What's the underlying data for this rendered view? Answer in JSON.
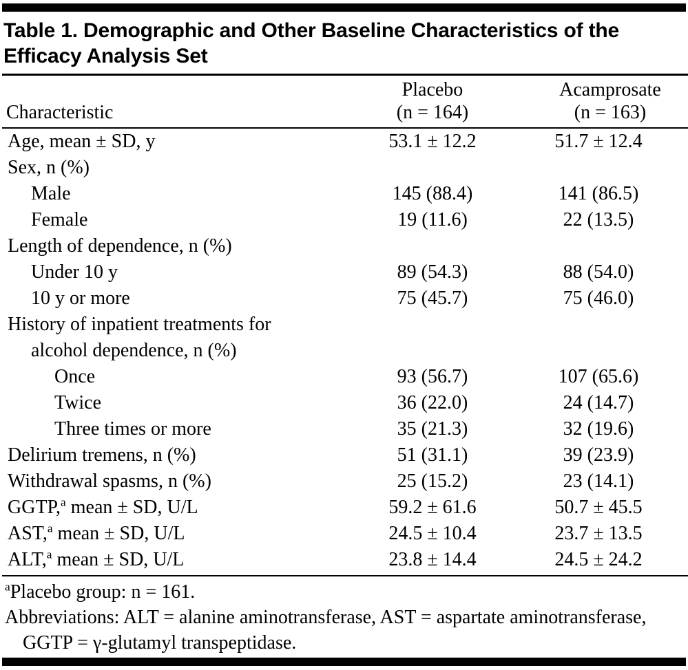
{
  "table": {
    "title": "Table 1. Demographic and Other Baseline Characteristics of the Efficacy Analysis Set",
    "columns": {
      "characteristic": "Characteristic",
      "placebo_line1": "Placebo",
      "placebo_line2": "(n = 164)",
      "acamprosate_line1": "Acamprosate",
      "acamprosate_line2": "(n = 163)"
    },
    "rows": [
      {
        "label": "Age, mean ± SD, y",
        "indent": 0,
        "placebo": "53.1 ± 12.2",
        "acamprosate": "51.7 ± 12.4"
      },
      {
        "label": "Sex, n (%)",
        "indent": 0,
        "placebo": "",
        "acamprosate": ""
      },
      {
        "label": "Male",
        "indent": 1,
        "placebo": "145 (88.4)",
        "acamprosate": "141 (86.5)"
      },
      {
        "label": "Female",
        "indent": 1,
        "placebo": "19 (11.6)",
        "acamprosate": "22 (13.5)"
      },
      {
        "label": "Length of dependence, n (%)",
        "indent": 0,
        "placebo": "",
        "acamprosate": ""
      },
      {
        "label": "Under 10 y",
        "indent": 1,
        "placebo": "89 (54.3)",
        "acamprosate": "88 (54.0)"
      },
      {
        "label": "10 y or more",
        "indent": 1,
        "placebo": "75 (45.7)",
        "acamprosate": "75 (46.0)"
      },
      {
        "label": "History of inpatient treatments for",
        "indent": 0,
        "placebo": "",
        "acamprosate": ""
      },
      {
        "label": "alcohol dependence, n (%)",
        "indent": 1,
        "placebo": "",
        "acamprosate": ""
      },
      {
        "label": "Once",
        "indent": 2,
        "placebo": "93 (56.7)",
        "acamprosate": "107 (65.6)"
      },
      {
        "label": "Twice",
        "indent": 2,
        "placebo": "36 (22.0)",
        "acamprosate": "24 (14.7)"
      },
      {
        "label": "Three times or more",
        "indent": 2,
        "placebo": "35 (21.3)",
        "acamprosate": "32 (19.6)"
      },
      {
        "label": "Delirium tremens, n (%)",
        "indent": 0,
        "placebo": "51 (31.1)",
        "acamprosate": "39 (23.9)"
      },
      {
        "label": "Withdrawal spasms, n (%)",
        "indent": 0,
        "placebo": "25 (15.2)",
        "acamprosate": "23 (14.1)"
      },
      {
        "label": "GGTP,",
        "sup": "a",
        "label_post": " mean ± SD, U/L",
        "indent": 0,
        "placebo": "59.2 ± 61.6",
        "acamprosate": "50.7 ± 45.5"
      },
      {
        "label": "AST,",
        "sup": "a",
        "label_post": " mean ± SD, U/L",
        "indent": 0,
        "placebo": "24.5 ± 10.4",
        "acamprosate": "23.7 ± 13.5"
      },
      {
        "label": "ALT,",
        "sup": "a",
        "label_post": " mean ± SD, U/L",
        "indent": 0,
        "placebo": "23.8 ± 14.4",
        "acamprosate": "24.5 ± 24.2"
      }
    ],
    "footnotes": [
      {
        "sup": "a",
        "text": "Placebo group: n = 161."
      },
      {
        "sup": "",
        "text": "Abbreviations: ALT = alanine aminotransferase, AST = aspartate aminotransferase, GGTP = γ-glutamyl transpeptidase."
      }
    ]
  }
}
